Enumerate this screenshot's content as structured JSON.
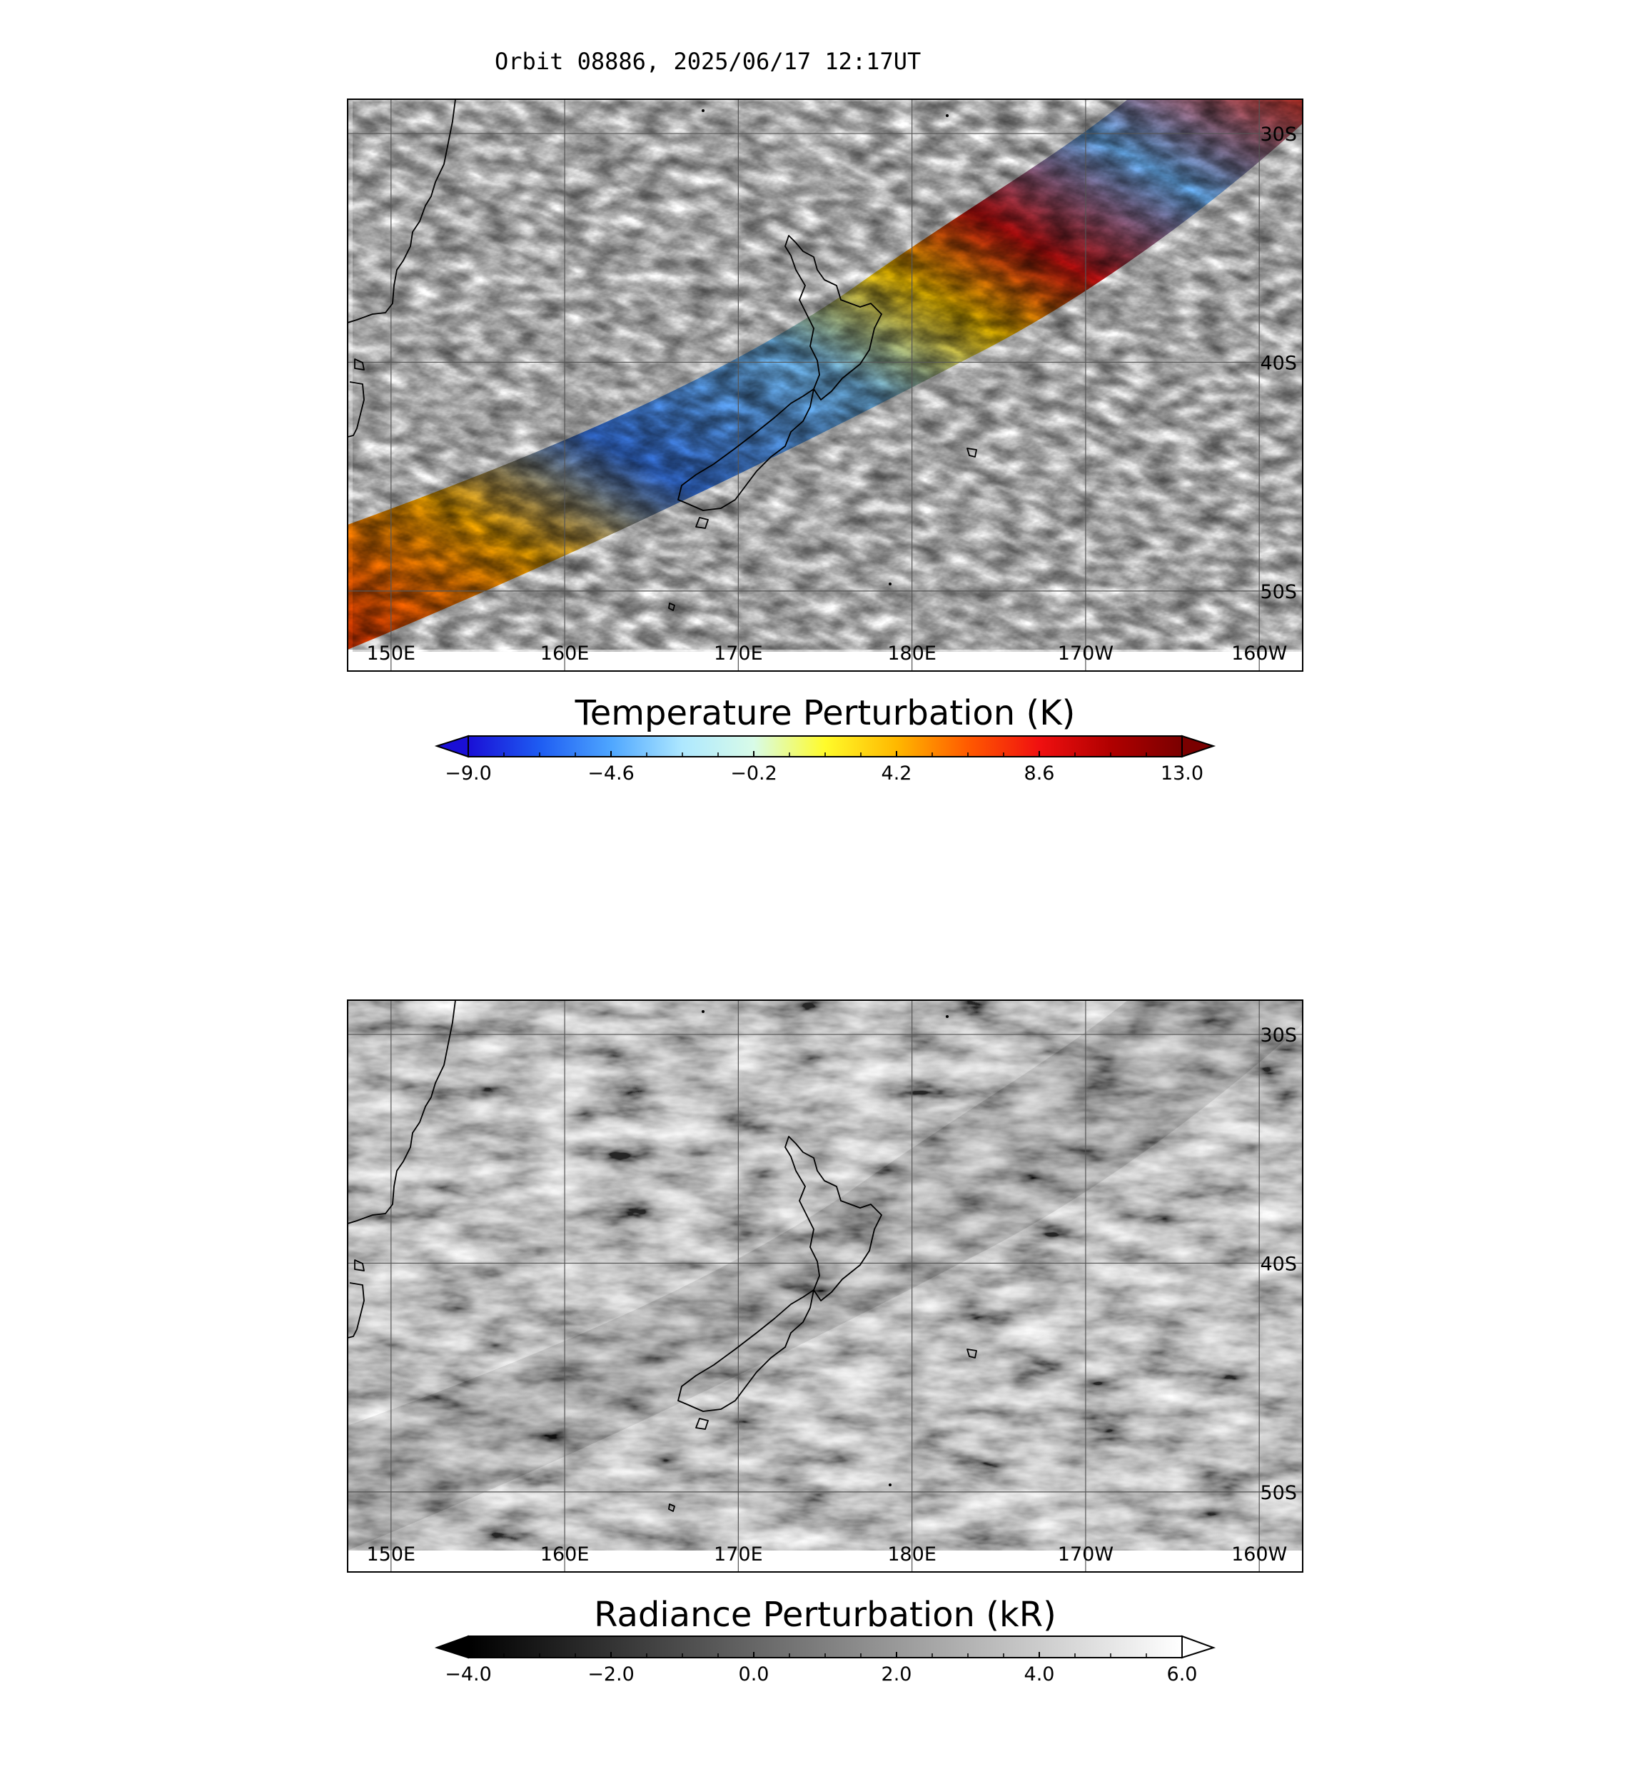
{
  "figure_title": "Orbit 08886, 2025/06/17 12:17UT",
  "panels": [
    {
      "id": "temperature",
      "colorbar_title": "Temperature Perturbation (K)",
      "colorbar_ticks": [
        "-9.0",
        "-4.6",
        "-0.2",
        "4.2",
        "8.6",
        "13.0"
      ],
      "colorbar_range": [
        -9.0,
        13.0
      ],
      "colormap": [
        "#1a0fd6",
        "#1e5cf2",
        "#4ea6ff",
        "#aee8ff",
        "#d8fbe8",
        "#fffb2a",
        "#ffb800",
        "#ff5a00",
        "#f01010",
        "#b00000",
        "#7a0000"
      ],
      "under_color": "#1a0fd6",
      "over_color": "#7a0000"
    },
    {
      "id": "radiance",
      "colorbar_title": "Radiance Perturbation (kR)",
      "colorbar_ticks": [
        "-4.0",
        "-2.0",
        "0.0",
        "2.0",
        "4.0",
        "6.0"
      ],
      "colorbar_range": [
        -4.0,
        6.0
      ],
      "colormap": [
        "#000000",
        "#ffffff"
      ],
      "under_color": "#000000",
      "over_color": "#ffffff"
    }
  ],
  "map": {
    "lon_ticks": [
      "150E",
      "160E",
      "170E",
      "180E",
      "170W",
      "160W"
    ],
    "lat_ticks": [
      "30S",
      "40S",
      "50S"
    ],
    "lon_range": [
      147.5,
      202.5
    ],
    "lat_range": [
      -28.5,
      -53.5
    ]
  }
}
